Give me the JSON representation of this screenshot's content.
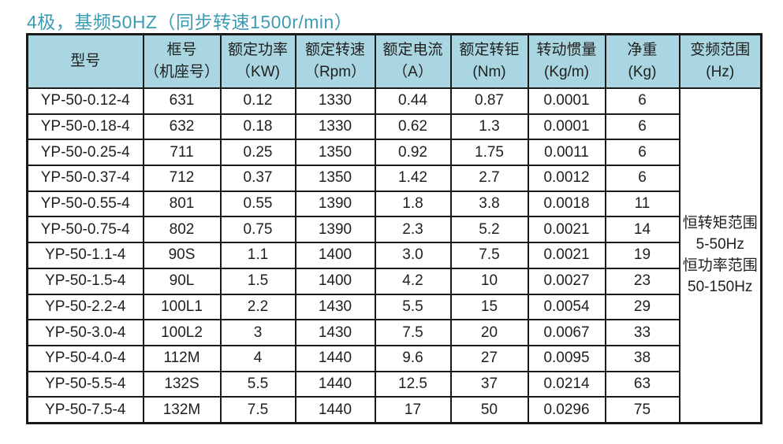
{
  "title": "4极，基频50HZ（同步转速1500r/min）",
  "colors": {
    "title_text": "#3d9cb2",
    "header_bg": "#a9d6e0",
    "border": "#1a1a1a",
    "body_text": "#1f1f1f"
  },
  "table": {
    "headers": [
      {
        "line1": "型号",
        "line2": ""
      },
      {
        "line1": "框号",
        "line2": "（机座号）"
      },
      {
        "line1": "额定功率",
        "line2": "（KW)"
      },
      {
        "line1": "额定转速",
        "line2": "（Rpm）"
      },
      {
        "line1": "额定电流",
        "line2": "（A）"
      },
      {
        "line1": "额定转钜",
        "line2": "(Nm)"
      },
      {
        "line1": "转动惯量",
        "line2": "(Kg/m)"
      },
      {
        "line1": "净重",
        "line2": "(Kg)"
      },
      {
        "line1": "变频范围",
        "line2": "(Hz)"
      }
    ],
    "rows": [
      [
        "YP-50-0.12-4",
        "631",
        "0.12",
        "1330",
        "0.44",
        "0.87",
        "0.0001",
        "6"
      ],
      [
        "YP-50-0.18-4",
        "632",
        "0.18",
        "1330",
        "0.62",
        "1.3",
        "0.0001",
        "6"
      ],
      [
        "YP-50-0.25-4",
        "711",
        "0.25",
        "1350",
        "0.92",
        "1.75",
        "0.0011",
        "6"
      ],
      [
        "YP-50-0.37-4",
        "712",
        "0.37",
        "1350",
        "1.42",
        "2.7",
        "0.0012",
        "6"
      ],
      [
        "YP-50-0.55-4",
        "801",
        "0.55",
        "1390",
        "1.8",
        "3.8",
        "0.0018",
        "11"
      ],
      [
        "YP-50-0.75-4",
        "802",
        "0.75",
        "1390",
        "2.3",
        "5.2",
        "0.0021",
        "14"
      ],
      [
        "YP-50-1.1-4",
        "90S",
        "1.1",
        "1400",
        "3.0",
        "7.5",
        "0.0021",
        "19"
      ],
      [
        "YP-50-1.5-4",
        "90L",
        "1.5",
        "1400",
        "4.2",
        "10",
        "0.0027",
        "23"
      ],
      [
        "YP-50-2.2-4",
        "100L1",
        "2.2",
        "1430",
        "5.5",
        "15",
        "0.0054",
        "29"
      ],
      [
        "YP-50-3.0-4",
        "100L2",
        "3",
        "1430",
        "7.5",
        "20",
        "0.0067",
        "33"
      ],
      [
        "YP-50-4.0-4",
        "112M",
        "4",
        "1440",
        "9.6",
        "27",
        "0.0095",
        "38"
      ],
      [
        "YP-50-5.5-4",
        "132S",
        "5.5",
        "1440",
        "12.5",
        "37",
        "0.0214",
        "63"
      ],
      [
        "YP-50-7.5-4",
        "132M",
        "7.5",
        "1440",
        "17",
        "50",
        "0.0296",
        "75"
      ]
    ],
    "freq_range_note": [
      "恒转矩范围",
      "5-50Hz",
      "恒功率范围",
      "50-150Hz"
    ]
  }
}
